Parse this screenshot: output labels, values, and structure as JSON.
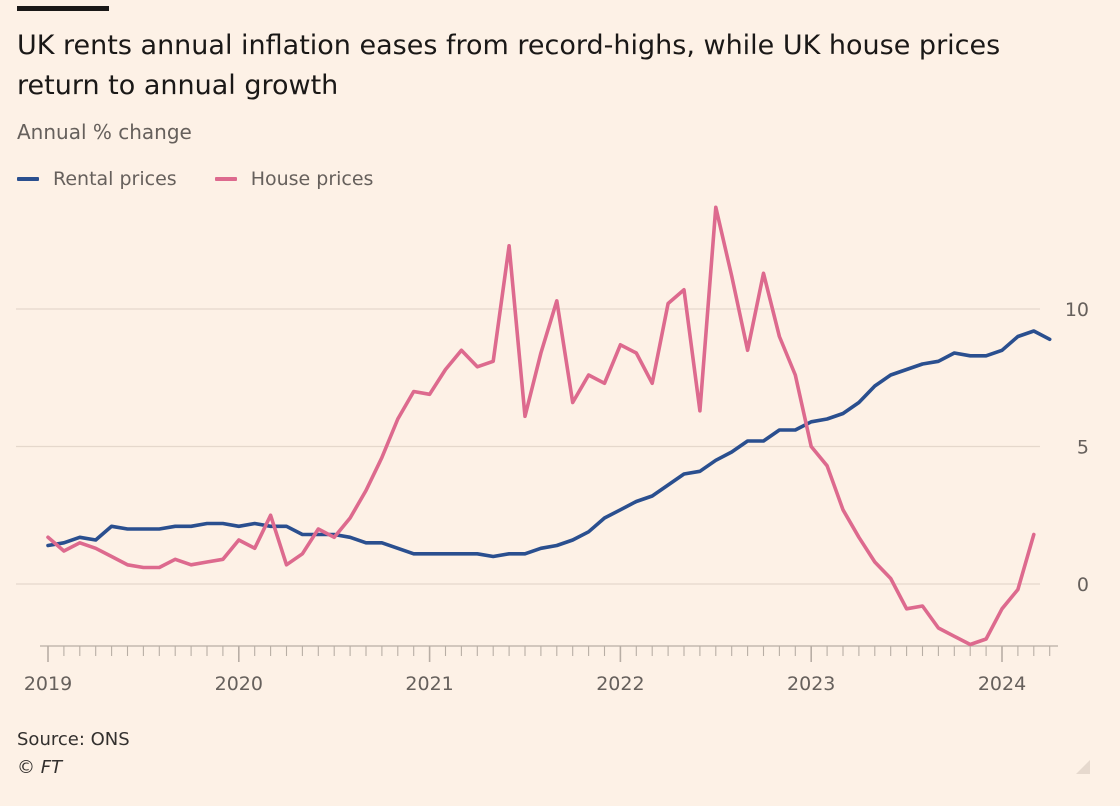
{
  "title": "UK rents annual inflation eases from record-highs, while UK house prices return to annual growth",
  "subtitle": "Annual % change",
  "source": "Source: ONS",
  "credit": "© FT",
  "colors": {
    "background": "#fdf1e6",
    "rental": "#2a4f8f",
    "house": "#dd6a8e",
    "grid": "#e5d8cc",
    "text": "#66605c"
  },
  "legend": [
    {
      "label": "Rental prices",
      "color": "#2a4f8f"
    },
    {
      "label": "House prices",
      "color": "#dd6a8e"
    }
  ],
  "chart_data": {
    "type": "line",
    "title": "UK rents annual inflation eases from record-highs, while UK house prices return to annual growth",
    "subtitle": "Annual % change",
    "ylabel": "",
    "xlabel": "",
    "ylim": [
      -2.3,
      13.8
    ],
    "yticks": [
      0,
      5,
      10
    ],
    "xticks": [
      "2019",
      "2020",
      "2021",
      "2022",
      "2023",
      "2024"
    ],
    "x_start": "2019-01",
    "x_end": "2024-04",
    "grid": true,
    "legend_position": "top-left",
    "x": [
      "2019-01",
      "2019-02",
      "2019-03",
      "2019-04",
      "2019-05",
      "2019-06",
      "2019-07",
      "2019-08",
      "2019-09",
      "2019-10",
      "2019-11",
      "2019-12",
      "2020-01",
      "2020-02",
      "2020-03",
      "2020-04",
      "2020-05",
      "2020-06",
      "2020-07",
      "2020-08",
      "2020-09",
      "2020-10",
      "2020-11",
      "2020-12",
      "2021-01",
      "2021-02",
      "2021-03",
      "2021-04",
      "2021-05",
      "2021-06",
      "2021-07",
      "2021-08",
      "2021-09",
      "2021-10",
      "2021-11",
      "2021-12",
      "2022-01",
      "2022-02",
      "2022-03",
      "2022-04",
      "2022-05",
      "2022-06",
      "2022-07",
      "2022-08",
      "2022-09",
      "2022-10",
      "2022-11",
      "2022-12",
      "2023-01",
      "2023-02",
      "2023-03",
      "2023-04",
      "2023-05",
      "2023-06",
      "2023-07",
      "2023-08",
      "2023-09",
      "2023-10",
      "2023-11",
      "2023-12",
      "2024-01",
      "2024-02",
      "2024-03",
      "2024-04"
    ],
    "series": [
      {
        "name": "Rental prices",
        "color": "#2a4f8f",
        "values": [
          1.4,
          1.5,
          1.7,
          1.6,
          2.1,
          2.0,
          2.0,
          2.0,
          2.1,
          2.1,
          2.2,
          2.2,
          2.1,
          2.2,
          2.1,
          2.1,
          1.8,
          1.8,
          1.8,
          1.7,
          1.5,
          1.5,
          1.3,
          1.1,
          1.1,
          1.1,
          1.1,
          1.1,
          1.0,
          1.1,
          1.1,
          1.3,
          1.4,
          1.6,
          1.9,
          2.4,
          2.7,
          3.0,
          3.2,
          3.6,
          4.0,
          4.1,
          4.5,
          4.8,
          5.2,
          5.2,
          5.6,
          5.6,
          5.9,
          6.0,
          6.2,
          6.6,
          7.2,
          7.6,
          7.8,
          8.0,
          8.1,
          8.4,
          8.3,
          8.3,
          8.5,
          9.0,
          9.2,
          8.9
        ]
      },
      {
        "name": "House prices",
        "color": "#dd6a8e",
        "values": [
          1.7,
          1.2,
          1.5,
          1.3,
          1.0,
          0.7,
          0.6,
          0.6,
          0.9,
          0.7,
          0.8,
          0.9,
          1.6,
          1.3,
          2.5,
          0.7,
          1.1,
          2.0,
          1.7,
          2.4,
          3.4,
          4.6,
          6.0,
          7.0,
          6.9,
          7.8,
          8.5,
          7.9,
          8.1,
          12.3,
          6.1,
          8.4,
          10.3,
          6.6,
          7.6,
          7.3,
          8.7,
          8.4,
          7.3,
          10.2,
          10.7,
          6.3,
          13.7,
          11.2,
          8.5,
          11.3,
          9.0,
          7.6,
          5.0,
          4.3,
          2.7,
          1.7,
          0.8,
          0.2,
          -0.9,
          -0.8,
          -1.6,
          -1.9,
          -2.2,
          -2.0,
          -0.9,
          -0.2,
          1.8,
          null
        ]
      }
    ]
  }
}
